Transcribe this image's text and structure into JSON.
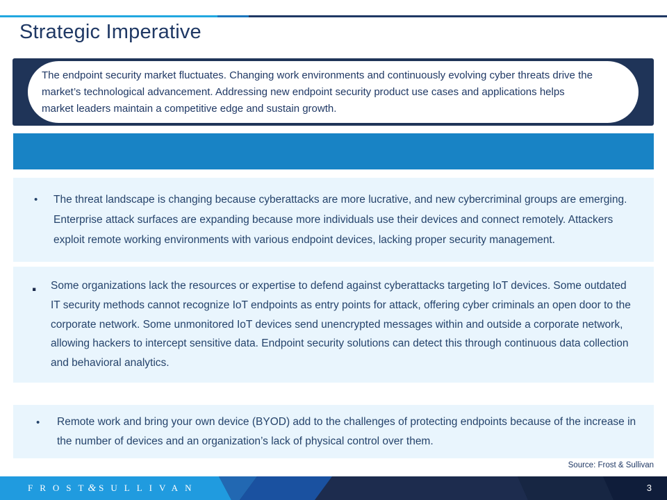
{
  "slide": {
    "title": "Strategic Imperative",
    "callout_text": "The endpoint security market fluctuates. Changing work environments and continuously evolving cyber threats drive the market’s technological advancement. Addressing new endpoint security product use cases and applications helps market leaders maintain a competitive edge and sustain growth.",
    "banner_text": "",
    "bullets": [
      {
        "marker": "•",
        "text": "The threat landscape is changing because cyberattacks are more lucrative, and new cybercriminal groups are emerging. Enterprise attack surfaces are expanding because more individuals use their devices and connect remotely. Attackers exploit remote working environments with various endpoint devices, lacking proper security management."
      },
      {
        "marker": ".",
        "text": "Some organizations lack the resources or expertise to defend against cyberattacks targeting IoT devices. Some outdated IT security methods cannot recognize IoT endpoints as entry points for attack, offering cyber criminals an open door to the corporate network. Some unmonitored IoT devices send unencrypted messages within and outside a corporate network, allowing hackers to intercept sensitive data. Endpoint security solutions can detect this through continuous data collection and behavioral analytics."
      },
      {
        "marker": "•",
        "text": "Remote work and bring your own device (BYOD) add to the challenges of protecting endpoints because of the increase in the number of devices and an organization’s lack of physical control over them."
      }
    ],
    "source": "Source: Frost & Sullivan",
    "footer": {
      "logo_frost": "FROST",
      "logo_amp": "&",
      "logo_sullivan": "SULLIVAN",
      "page_number": "3"
    },
    "colors": {
      "navy": "#1f3864",
      "callout_navy": "#1f3458",
      "banner_blue": "#1883c5",
      "light_box_blue": "#e9f5fd",
      "accent_cyan": "#21a7e0",
      "accent_mid_blue": "#1b75bc",
      "footer_bright_blue": "#209bdf",
      "footer_royal_blue": "#1a51a0",
      "footer_navy": "#1d2c4e",
      "body_text": "#25436b"
    }
  }
}
